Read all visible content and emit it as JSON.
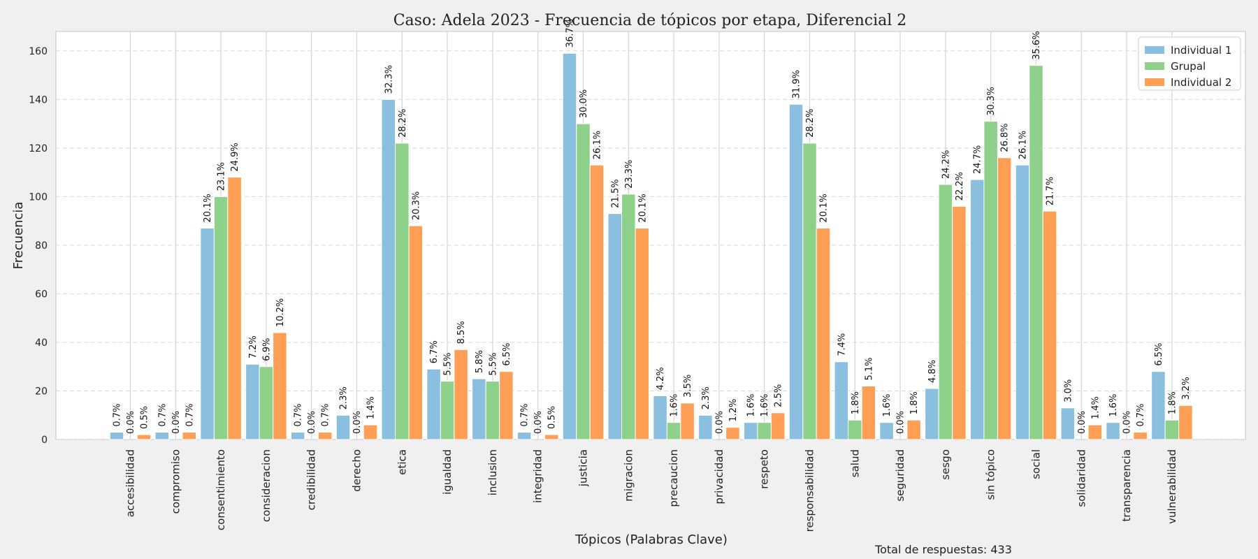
{
  "chart_data": {
    "type": "bar",
    "title": "Caso: Adela 2023 - Frecuencia de tópicos por etapa, Diferencial 2",
    "xlabel": "Tópicos (Palabras Clave)",
    "ylabel": "Frecuencia",
    "ylim": [
      0,
      168
    ],
    "yticks": [
      0,
      20,
      40,
      60,
      80,
      100,
      120,
      140,
      160
    ],
    "grid": true,
    "legend_position": "top-right",
    "footer_note": "Total de respuestas: 433",
    "categories": [
      "accesibilidad",
      "compromiso",
      "consentimiento",
      "consideracion",
      "credibilidad",
      "derecho",
      "etica",
      "igualdad",
      "inclusion",
      "integridad",
      "justicia",
      "migracion",
      "precaucion",
      "privacidad",
      "respeto",
      "responsabilidad",
      "salud",
      "seguridad",
      "sesgo",
      "sin tópico",
      "social",
      "solidaridad",
      "transparencia",
      "vulnerabilidad"
    ],
    "series": [
      {
        "name": "Individual 1",
        "color": "#8bbfe0",
        "values": [
          3,
          3,
          87,
          31,
          3,
          10,
          140,
          29,
          25,
          3,
          159,
          93,
          18,
          10,
          7,
          138,
          32,
          7,
          21,
          107,
          113,
          13,
          7,
          28
        ],
        "labels": [
          "0.7%",
          "0.7%",
          "20.1%",
          "7.2%",
          "0.7%",
          "2.3%",
          "32.3%",
          "6.7%",
          "5.8%",
          "0.7%",
          "36.7%",
          "21.5%",
          "4.2%",
          "2.3%",
          "1.6%",
          "31.9%",
          "7.4%",
          "1.6%",
          "4.8%",
          "24.7%",
          "26.1%",
          "3.0%",
          "1.6%",
          "6.5%"
        ]
      },
      {
        "name": "Grupal",
        "color": "#8ed18a",
        "values": [
          0,
          0,
          100,
          30,
          0,
          0,
          122,
          24,
          24,
          0,
          130,
          101,
          7,
          0,
          7,
          122,
          8,
          0,
          105,
          131,
          154,
          0,
          0,
          8
        ],
        "labels": [
          "0.0%",
          "0.0%",
          "23.1%",
          "6.9%",
          "0.0%",
          "0.0%",
          "28.2%",
          "5.5%",
          "5.5%",
          "0.0%",
          "30.0%",
          "23.3%",
          "1.6%",
          "0.0%",
          "1.6%",
          "28.2%",
          "1.8%",
          "0.0%",
          "24.2%",
          "30.3%",
          "35.6%",
          "0.0%",
          "0.0%",
          "1.8%"
        ]
      },
      {
        "name": "Individual 2",
        "color": "#ff9f55",
        "values": [
          2,
          3,
          108,
          44,
          3,
          6,
          88,
          37,
          28,
          2,
          113,
          87,
          15,
          5,
          11,
          87,
          22,
          8,
          96,
          116,
          94,
          6,
          3,
          14
        ],
        "labels": [
          "0.5%",
          "0.7%",
          "24.9%",
          "10.2%",
          "0.7%",
          "1.4%",
          "20.3%",
          "8.5%",
          "6.5%",
          "0.5%",
          "26.1%",
          "20.1%",
          "3.5%",
          "1.2%",
          "2.5%",
          "20.1%",
          "5.1%",
          "1.8%",
          "22.2%",
          "26.8%",
          "21.7%",
          "1.4%",
          "0.7%",
          "3.2%"
        ]
      }
    ]
  }
}
